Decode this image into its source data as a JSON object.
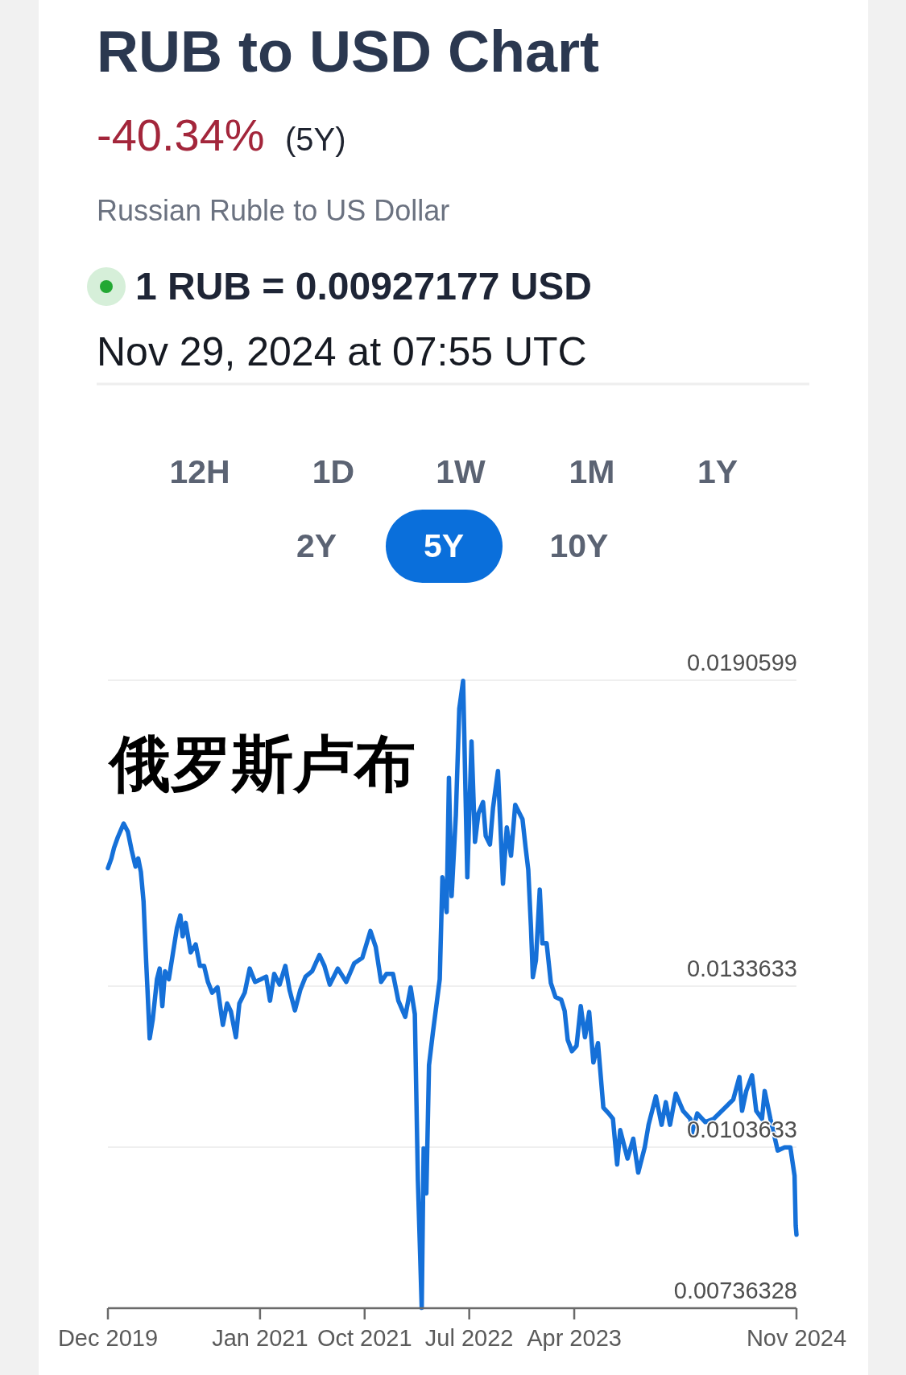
{
  "chart_data": {
    "type": "line",
    "title": "RUB to USD Chart",
    "subtitle": "Russian Ruble to US Dollar",
    "annotations": [
      "-40.34%",
      "(5Y)",
      "1 RUB = 0.00927177 USD",
      "Nov 29, 2024 at 07:55 UTC",
      "12H",
      "1D",
      "1W",
      "1M",
      "1Y",
      "2Y",
      "5Y",
      "10Y",
      "俄罗斯卢布"
    ],
    "x": [
      "2019-12-01",
      "2019-12-10",
      "2019-12-17",
      "2019-12-27",
      "2020-01-11",
      "2020-01-22",
      "2020-02-01",
      "2020-02-11",
      "2020-02-18",
      "2020-02-25",
      "2020-03-03",
      "2020-03-06",
      "2020-03-10",
      "2020-03-13",
      "2020-03-19",
      "2020-03-27",
      "2020-04-07",
      "2020-04-14",
      "2020-04-21",
      "2020-04-28",
      "2020-05-08",
      "2020-05-19",
      "2020-05-29",
      "2020-06-07",
      "2020-06-13",
      "2020-06-21",
      "2020-07-04",
      "2020-07-17",
      "2020-07-28",
      "2020-08-08",
      "2020-08-18",
      "2020-08-29",
      "2020-09-12",
      "2020-09-26",
      "2020-10-07",
      "2020-10-17",
      "2020-10-30",
      "2020-11-08",
      "2020-11-22",
      "2020-12-05",
      "2020-12-19",
      "2021-01-03",
      "2021-01-17",
      "2021-01-27",
      "2021-02-07",
      "2021-02-21",
      "2021-03-08",
      "2021-03-19",
      "2021-04-02",
      "2021-04-16",
      "2021-04-30",
      "2021-05-17",
      "2021-06-05",
      "2021-06-18",
      "2021-07-02",
      "2021-07-23",
      "2021-08-14",
      "2021-09-04",
      "2021-09-25",
      "2021-10-16",
      "2021-10-30",
      "2021-11-13",
      "2021-11-27",
      "2021-12-14",
      "2021-12-28",
      "2022-01-15",
      "2022-01-29",
      "2022-02-09",
      "2022-02-17",
      "2022-02-27",
      "2022-03-04",
      "2022-03-11",
      "2022-03-18",
      "2022-03-28",
      "2022-04-15",
      "2022-04-22",
      "2022-05-03",
      "2022-05-09",
      "2022-05-16",
      "2022-05-27",
      "2022-06-05",
      "2022-06-15",
      "2022-06-26",
      "2022-07-07",
      "2022-07-16",
      "2022-07-25",
      "2022-08-06",
      "2022-08-13",
      "2022-08-24",
      "2022-09-01",
      "2022-09-14",
      "2022-09-27",
      "2022-10-07",
      "2022-10-18",
      "2022-10-29",
      "2022-11-17",
      "2022-11-25",
      "2022-12-02",
      "2022-12-09",
      "2022-12-14",
      "2022-12-22",
      "2023-01-01",
      "2023-01-08",
      "2023-01-19",
      "2023-01-30",
      "2023-02-11",
      "2023-02-26",
      "2023-03-07",
      "2023-03-15",
      "2023-03-26",
      "2023-04-07",
      "2023-04-18",
      "2023-04-29",
      "2023-05-10",
      "2023-05-21",
      "2023-06-02",
      "2023-06-16",
      "2023-06-30",
      "2023-07-11",
      "2023-07-22",
      "2023-07-30",
      "2023-08-18",
      "2023-09-02",
      "2023-09-15",
      "2023-10-02",
      "2023-10-12",
      "2023-10-31",
      "2023-11-15",
      "2023-11-26",
      "2023-12-07",
      "2023-12-22",
      "2024-01-10",
      "2024-01-29",
      "2024-02-02",
      "2024-02-16",
      "2024-03-08",
      "2024-03-30",
      "2024-04-29",
      "2024-05-20",
      "2024-06-05",
      "2024-06-12",
      "2024-06-23",
      "2024-07-08",
      "2024-07-19",
      "2024-08-03",
      "2024-08-10",
      "2024-08-25",
      "2024-09-13",
      "2024-10-01",
      "2024-10-16",
      "2024-10-27",
      "2024-10-30",
      "2024-11-01"
    ],
    "values": [
      0.01556,
      0.01574,
      0.01594,
      0.01614,
      0.01639,
      0.01624,
      0.01589,
      0.01559,
      0.01574,
      0.01549,
      0.01494,
      0.01444,
      0.01379,
      0.01334,
      0.01239,
      0.01274,
      0.01349,
      0.01369,
      0.01299,
      0.01364,
      0.01349,
      0.01399,
      0.01444,
      0.01468,
      0.01429,
      0.01454,
      0.01399,
      0.01414,
      0.01374,
      0.01374,
      0.01344,
      0.01324,
      0.01334,
      0.01264,
      0.01304,
      0.01289,
      0.01241,
      0.01304,
      0.01324,
      0.01369,
      0.01344,
      0.01349,
      0.01354,
      0.01309,
      0.01359,
      0.01339,
      0.01374,
      0.01329,
      0.01291,
      0.01329,
      0.01354,
      0.01364,
      0.01394,
      0.01374,
      0.01339,
      0.01369,
      0.01344,
      0.01379,
      0.01389,
      0.01439,
      0.01409,
      0.01344,
      0.01359,
      0.01359,
      0.01309,
      0.01279,
      0.01334,
      0.01284,
      0.00974,
      0.00737,
      0.01034,
      0.0095,
      0.01189,
      0.01249,
      0.01349,
      0.01539,
      0.01474,
      0.01724,
      0.01504,
      0.01654,
      0.01853,
      0.01905,
      0.01539,
      0.01792,
      0.01605,
      0.01658,
      0.01679,
      0.01616,
      0.016,
      0.01668,
      0.01737,
      0.01527,
      0.01632,
      0.01579,
      0.01674,
      0.01647,
      0.01595,
      0.01553,
      0.01447,
      0.01353,
      0.01384,
      0.01516,
      0.01416,
      0.01416,
      0.01342,
      0.01316,
      0.01311,
      0.0129,
      0.01236,
      0.01215,
      0.01225,
      0.01299,
      0.01241,
      0.01288,
      0.01194,
      0.0123,
      0.0111,
      0.01099,
      0.01089,
      0.01004,
      0.01068,
      0.01015,
      0.01052,
      0.00989,
      0.01036,
      0.01078,
      0.01131,
      0.01078,
      0.0112,
      0.01078,
      0.01136,
      0.01104,
      0.01089,
      0.01062,
      0.01099,
      0.01083,
      0.01089,
      0.0111,
      0.01125,
      0.01167,
      0.01104,
      0.01141,
      0.0117,
      0.01104,
      0.01089,
      0.01141,
      0.01089,
      0.0103,
      0.01036,
      0.01036,
      0.00983,
      0.0089,
      0.00873
    ],
    "color": "#1570d8",
    "xlim": [
      "2019-12-01",
      "2024-11-01"
    ],
    "xticks": [
      {
        "value": "2019-12-01",
        "label": "Dec 2019"
      },
      {
        "value": "2021-01-01",
        "label": "Jan 2021"
      },
      {
        "value": "2021-10-01",
        "label": "Oct 2021"
      },
      {
        "value": "2022-07-01",
        "label": "Jul 2022"
      },
      {
        "value": "2023-04-01",
        "label": "Apr 2023"
      },
      {
        "value": "2024-11-01",
        "label": "Nov 2024"
      }
    ],
    "ylim": [
      0.00736328,
      0.0190599
    ],
    "yticks": [
      0.00736328,
      0.0103633,
      0.0133633,
      0.0190599
    ],
    "grid": "y"
  }
}
